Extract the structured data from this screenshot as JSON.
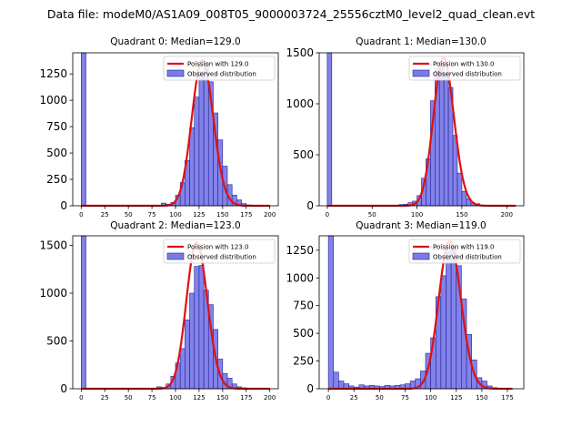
{
  "figure": {
    "suptitle": "Data file: modeM0/AS1A09_008T05_9000003724_25556cztM0_level2_quad_clean.evt"
  },
  "colors": {
    "bar_fill": "#7b7be8",
    "bar_edge": "#22229a",
    "fit_line": "#e01010",
    "axis": "#000000"
  },
  "chart_data": [
    {
      "type": "bar",
      "title": "Quadrant 0: Median=129.0",
      "xlim": [
        -9,
        209
      ],
      "ylim": [
        0,
        1450
      ],
      "xticks": [
        0,
        25,
        50,
        75,
        100,
        125,
        150,
        175,
        200
      ],
      "yticks": [
        0,
        250,
        500,
        750,
        1000,
        1250
      ],
      "bin_width": 5,
      "bins": [
        {
          "x": 0,
          "count": 1450
        },
        {
          "x": 85,
          "count": 25
        },
        {
          "x": 90,
          "count": 15
        },
        {
          "x": 95,
          "count": 30
        },
        {
          "x": 100,
          "count": 100
        },
        {
          "x": 105,
          "count": 220
        },
        {
          "x": 110,
          "count": 430
        },
        {
          "x": 115,
          "count": 740
        },
        {
          "x": 120,
          "count": 1030
        },
        {
          "x": 125,
          "count": 1270
        },
        {
          "x": 130,
          "count": 1345
        },
        {
          "x": 135,
          "count": 1175
        },
        {
          "x": 140,
          "count": 880
        },
        {
          "x": 145,
          "count": 625
        },
        {
          "x": 150,
          "count": 375
        },
        {
          "x": 155,
          "count": 200
        },
        {
          "x": 160,
          "count": 100
        },
        {
          "x": 165,
          "count": 55
        },
        {
          "x": 170,
          "count": 20
        },
        {
          "x": 175,
          "count": 8
        }
      ],
      "fit": {
        "label": "Poission with 129.0",
        "mu": 129.0,
        "peak": 1380,
        "x_range": [
          0,
          200
        ]
      },
      "legend": {
        "fit_label": "Poission with 129.0",
        "hist_label": "Observed distribution",
        "position": "top-right"
      }
    },
    {
      "type": "bar",
      "title": "Quadrant 1: Median=130.0",
      "xlim": [
        -9,
        219
      ],
      "ylim": [
        0,
        1500
      ],
      "xticks": [
        0,
        50,
        100,
        150,
        200
      ],
      "yticks": [
        0,
        500,
        1000,
        1500
      ],
      "bin_width": 5,
      "bins": [
        {
          "x": 0,
          "count": 1500
        },
        {
          "x": 80,
          "count": 12
        },
        {
          "x": 85,
          "count": 15
        },
        {
          "x": 90,
          "count": 30
        },
        {
          "x": 95,
          "count": 45
        },
        {
          "x": 100,
          "count": 100
        },
        {
          "x": 105,
          "count": 270
        },
        {
          "x": 110,
          "count": 460
        },
        {
          "x": 115,
          "count": 1030
        },
        {
          "x": 120,
          "count": 1350
        },
        {
          "x": 125,
          "count": 1400
        },
        {
          "x": 130,
          "count": 1300
        },
        {
          "x": 135,
          "count": 1160
        },
        {
          "x": 140,
          "count": 690
        },
        {
          "x": 145,
          "count": 320
        },
        {
          "x": 150,
          "count": 140
        },
        {
          "x": 155,
          "count": 70
        },
        {
          "x": 160,
          "count": 25
        },
        {
          "x": 165,
          "count": 20
        }
      ],
      "fit": {
        "label": "Poission with 130.0",
        "mu": 130.0,
        "peak": 1450,
        "x_range": [
          0,
          210
        ]
      },
      "legend": {
        "fit_label": "Poission with 130.0",
        "hist_label": "Observed distribution",
        "position": "top-right"
      }
    },
    {
      "type": "bar",
      "title": "Quadrant 2: Median=123.0",
      "xlim": [
        -9,
        209
      ],
      "ylim": [
        0,
        1600
      ],
      "xticks": [
        0,
        25,
        50,
        75,
        100,
        125,
        150,
        175,
        200
      ],
      "yticks": [
        0,
        500,
        1000,
        1500
      ],
      "bin_width": 5,
      "bins": [
        {
          "x": 0,
          "count": 1600
        },
        {
          "x": 80,
          "count": 20
        },
        {
          "x": 85,
          "count": 15
        },
        {
          "x": 90,
          "count": 50
        },
        {
          "x": 95,
          "count": 130
        },
        {
          "x": 100,
          "count": 270
        },
        {
          "x": 105,
          "count": 420
        },
        {
          "x": 110,
          "count": 720
        },
        {
          "x": 115,
          "count": 1000
        },
        {
          "x": 120,
          "count": 1280
        },
        {
          "x": 125,
          "count": 1290
        },
        {
          "x": 130,
          "count": 1030
        },
        {
          "x": 135,
          "count": 880
        },
        {
          "x": 140,
          "count": 620
        },
        {
          "x": 145,
          "count": 310
        },
        {
          "x": 150,
          "count": 160
        },
        {
          "x": 155,
          "count": 110
        },
        {
          "x": 160,
          "count": 50
        },
        {
          "x": 165,
          "count": 20
        },
        {
          "x": 170,
          "count": 10
        }
      ],
      "fit": {
        "label": "Poission with 123.0",
        "mu": 123.0,
        "peak": 1530,
        "x_range": [
          0,
          200
        ]
      },
      "legend": {
        "fit_label": "Poission with 123.0",
        "hist_label": "Observed distribution",
        "position": "top-right"
      }
    },
    {
      "type": "bar",
      "title": "Quadrant 3: Median=119.0",
      "xlim": [
        -9,
        191
      ],
      "ylim": [
        0,
        1380
      ],
      "xticks": [
        0,
        25,
        50,
        75,
        100,
        125,
        150,
        175
      ],
      "yticks": [
        0,
        250,
        500,
        750,
        1000,
        1250
      ],
      "bin_width": 5,
      "bins": [
        {
          "x": 0,
          "count": 1380
        },
        {
          "x": 5,
          "count": 150
        },
        {
          "x": 10,
          "count": 70
        },
        {
          "x": 15,
          "count": 45
        },
        {
          "x": 20,
          "count": 25
        },
        {
          "x": 25,
          "count": 15
        },
        {
          "x": 30,
          "count": 35
        },
        {
          "x": 35,
          "count": 25
        },
        {
          "x": 40,
          "count": 30
        },
        {
          "x": 45,
          "count": 25
        },
        {
          "x": 50,
          "count": 20
        },
        {
          "x": 55,
          "count": 30
        },
        {
          "x": 60,
          "count": 25
        },
        {
          "x": 65,
          "count": 30
        },
        {
          "x": 70,
          "count": 35
        },
        {
          "x": 75,
          "count": 45
        },
        {
          "x": 80,
          "count": 70
        },
        {
          "x": 85,
          "count": 90
        },
        {
          "x": 90,
          "count": 160
        },
        {
          "x": 95,
          "count": 320
        },
        {
          "x": 100,
          "count": 460
        },
        {
          "x": 105,
          "count": 830
        },
        {
          "x": 110,
          "count": 1020
        },
        {
          "x": 115,
          "count": 1240
        },
        {
          "x": 120,
          "count": 1280
        },
        {
          "x": 125,
          "count": 1110
        },
        {
          "x": 130,
          "count": 810
        },
        {
          "x": 135,
          "count": 490
        },
        {
          "x": 140,
          "count": 260
        },
        {
          "x": 145,
          "count": 100
        },
        {
          "x": 150,
          "count": 70
        },
        {
          "x": 155,
          "count": 25
        },
        {
          "x": 160,
          "count": 10
        }
      ],
      "fit": {
        "label": "Poission with 119.0",
        "mu": 119.0,
        "peak": 1330,
        "x_range": [
          0,
          180
        ]
      },
      "legend": {
        "fit_label": "Poission with 119.0",
        "hist_label": "Observed distribution",
        "position": "top-right"
      }
    }
  ]
}
